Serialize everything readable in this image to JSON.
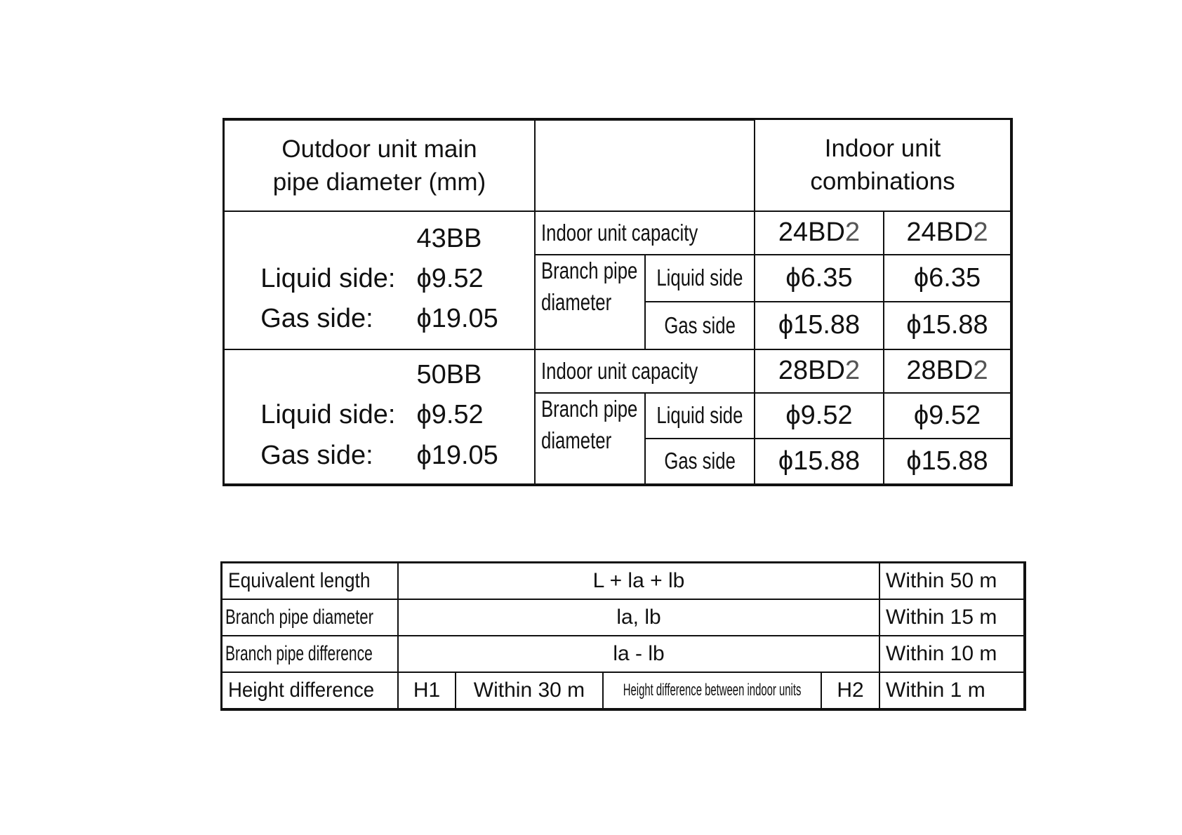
{
  "top_table": {
    "header_left": [
      "Outdoor unit main",
      "pipe diameter (mm)"
    ],
    "header_middle": "",
    "header_right": [
      "Indoor unit",
      "combinations"
    ],
    "groups": [
      {
        "model": "43BB",
        "liquid_label": "Liquid side:",
        "liquid_value": "ϕ9.52",
        "gas_label": "Gas side:",
        "gas_value": "ϕ19.05",
        "capacity_label": "Indoor unit capacity",
        "capacities": [
          "24BD",
          "24BD"
        ],
        "capacity_suffix": "2",
        "branch_label": [
          "Branch pipe",
          "diameter"
        ],
        "liquid_side_label": "Liquid side",
        "gas_side_label": "Gas side",
        "liquid_values": [
          "ϕ6.35",
          "ϕ6.35"
        ],
        "gas_values": [
          "ϕ15.88",
          "ϕ15.88"
        ]
      },
      {
        "model": "50BB",
        "liquid_label": "Liquid side:",
        "liquid_value": "ϕ9.52",
        "gas_label": "Gas side:",
        "gas_value": "ϕ19.05",
        "capacity_label": "Indoor unit capacity",
        "capacities": [
          "28BD",
          "28BD"
        ],
        "capacity_suffix": "2",
        "branch_label": [
          "Branch pipe",
          "diameter"
        ],
        "liquid_side_label": "Liquid side",
        "gas_side_label": "Gas side",
        "liquid_values": [
          "ϕ9.52",
          "ϕ9.52"
        ],
        "gas_values": [
          "ϕ15.88",
          "ϕ15.88"
        ]
      }
    ]
  },
  "bottom_table": {
    "rows": [
      {
        "label": "Equivalent length",
        "formula": "L + la + lb",
        "limit": "Within 50 m"
      },
      {
        "label": "Branch pipe diameter",
        "formula": "la, lb",
        "limit": "Within 15 m"
      },
      {
        "label": "Branch pipe difference",
        "formula": "la - lb",
        "limit": "Within 10 m"
      }
    ],
    "height_row": {
      "label": "Height difference",
      "h1": "H1",
      "h1_limit": "Within 30 m",
      "between_label": "Height difference between indoor units",
      "h2": "H2",
      "h2_limit": "Within 1 m"
    }
  }
}
